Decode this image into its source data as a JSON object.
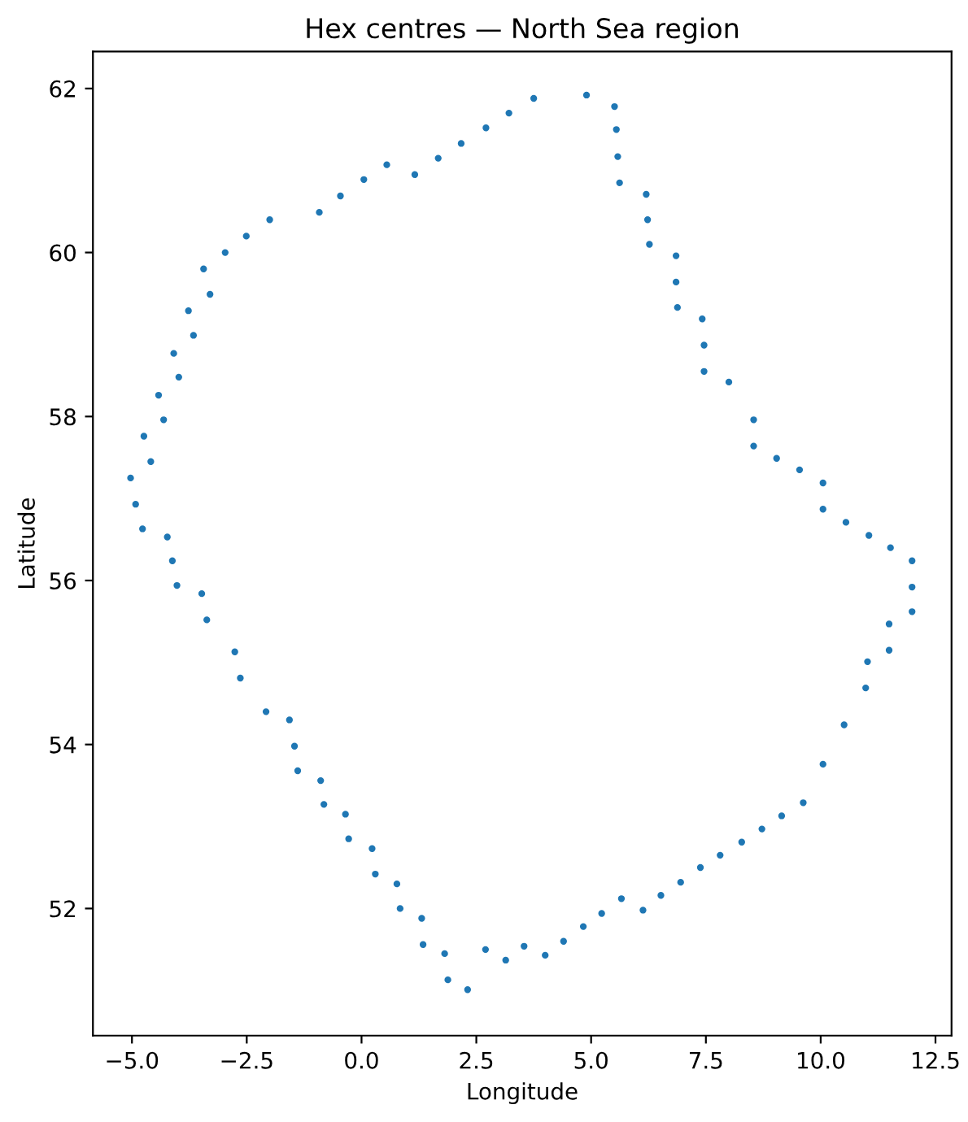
{
  "chart_data": {
    "type": "scatter",
    "title": "Hex centres — North Sea region",
    "xlabel": "Longitude",
    "ylabel": "Latitude",
    "xlim": [
      -5.85,
      12.85
    ],
    "ylim": [
      50.45,
      62.45
    ],
    "xticks": [
      {
        "value": -5.0,
        "label": "−5.0"
      },
      {
        "value": -2.5,
        "label": "−2.5"
      },
      {
        "value": 0.0,
        "label": "0.0"
      },
      {
        "value": 2.5,
        "label": "2.5"
      },
      {
        "value": 5.0,
        "label": "5.0"
      },
      {
        "value": 7.5,
        "label": "7.5"
      },
      {
        "value": 10.0,
        "label": "10.0"
      },
      {
        "value": 12.5,
        "label": "12.5"
      }
    ],
    "yticks": [
      52,
      54,
      56,
      58,
      60,
      62
    ],
    "grid": false,
    "marker": "circle",
    "series": [
      {
        "color": "#1f77b4",
        "x": [
          -3.44,
          -2.97,
          -2.51,
          -2.0,
          -0.92,
          -0.46,
          0.05,
          0.55,
          1.16,
          1.67,
          2.17,
          2.71,
          3.21,
          3.75,
          4.9,
          5.51,
          5.55,
          5.58,
          5.62,
          6.2,
          6.23,
          6.27,
          6.85,
          6.85,
          6.88,
          7.42,
          7.46,
          7.46,
          8.0,
          8.54,
          8.54,
          9.04,
          9.54,
          10.05,
          10.05,
          10.55,
          11.05,
          11.52,
          11.99,
          11.99,
          11.99,
          11.49,
          11.49,
          11.02,
          10.98,
          10.51,
          10.05,
          9.62,
          9.15,
          8.72,
          8.28,
          7.81,
          7.38,
          6.95,
          6.52,
          6.13,
          5.66,
          5.23,
          4.83,
          4.4,
          4.0,
          3.54,
          3.14,
          2.7,
          2.31,
          1.88,
          1.81,
          1.34,
          1.31,
          0.84,
          0.77,
          0.3,
          0.23,
          -0.28,
          -0.35,
          -0.82,
          -0.89,
          -1.39,
          -1.46,
          -1.57,
          -2.08,
          -2.64,
          -2.76,
          -3.37,
          -3.48,
          -4.02,
          -4.12,
          -4.23,
          -4.77,
          -4.92,
          -5.03,
          -4.74,
          -4.59,
          -4.31,
          -4.42,
          -3.98,
          -4.09,
          -3.66,
          -3.77,
          -3.3
        ],
        "values": [
          59.8,
          60.0,
          60.2,
          60.4,
          60.49,
          60.69,
          60.89,
          61.07,
          60.95,
          61.15,
          61.33,
          61.52,
          61.7,
          61.88,
          61.92,
          61.78,
          61.5,
          61.17,
          60.85,
          60.71,
          60.4,
          60.1,
          59.96,
          59.64,
          59.33,
          59.19,
          58.87,
          58.55,
          58.42,
          57.96,
          57.64,
          57.49,
          57.35,
          57.19,
          56.87,
          56.71,
          56.55,
          56.4,
          56.24,
          55.92,
          55.62,
          55.47,
          55.15,
          55.01,
          54.69,
          54.24,
          53.76,
          53.29,
          53.13,
          52.97,
          52.81,
          52.65,
          52.5,
          52.32,
          52.16,
          51.98,
          52.12,
          51.94,
          51.78,
          51.6,
          51.43,
          51.54,
          51.37,
          51.5,
          51.01,
          51.13,
          51.45,
          51.56,
          51.88,
          52.0,
          52.3,
          52.42,
          52.73,
          52.85,
          53.15,
          53.27,
          53.56,
          53.68,
          53.98,
          54.3,
          54.4,
          54.81,
          55.13,
          55.52,
          55.84,
          55.94,
          56.24,
          56.53,
          56.63,
          56.93,
          57.25,
          57.76,
          57.45,
          57.96,
          58.26,
          58.48,
          58.77,
          58.99,
          59.29,
          59.49
        ]
      }
    ]
  }
}
